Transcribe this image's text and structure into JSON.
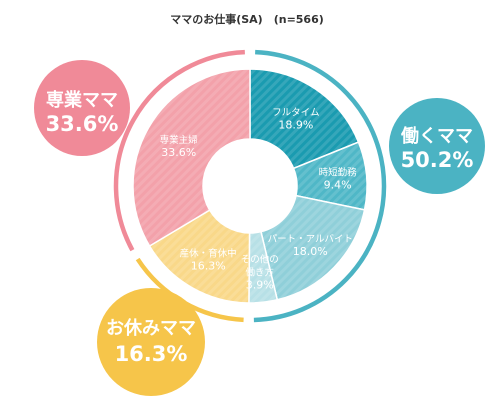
{
  "title": "ママのお仕事(SA)　(n=566)",
  "chart_data": {
    "type": "pie",
    "title": "ママのお仕事(SA)　(n=566)",
    "n": 566,
    "slices": [
      {
        "label_lines": [
          "フルタイム"
        ],
        "value": 18.9,
        "value_label": "18.9%",
        "color": "#1a9bb0",
        "group": "働くママ"
      },
      {
        "label_lines": [
          "時短勤務"
        ],
        "value": 9.4,
        "value_label": "9.4%",
        "color": "#4fb7c7",
        "group": "働くママ"
      },
      {
        "label_lines": [
          "パート・アルバイト"
        ],
        "value": 18.0,
        "value_label": "18.0%",
        "color": "#8fcfd9",
        "group": "働くママ"
      },
      {
        "label_lines": [
          "その他の",
          "働き方"
        ],
        "value": 3.9,
        "value_label": "3.9%",
        "color": "#b7e0e6",
        "group": "働くママ"
      },
      {
        "label_lines": [
          "産休・育休中"
        ],
        "value": 16.3,
        "value_label": "16.3%",
        "color": "#f9d889",
        "group": "お休みママ"
      },
      {
        "label_lines": [
          "専業主婦"
        ],
        "value": 33.6,
        "value_label": "33.6%",
        "color": "#f3a1aa",
        "group": "専業ママ"
      }
    ],
    "groups": [
      {
        "name": "専業ママ",
        "value": 33.6,
        "value_label": "33.6%",
        "color": "#f08a98"
      },
      {
        "name": "働くママ",
        "value": 50.2,
        "value_label": "50.2%",
        "color": "#4bb3c3"
      },
      {
        "name": "お休みママ",
        "value": 16.3,
        "value_label": "16.3%",
        "color": "#f6c54a"
      }
    ]
  }
}
